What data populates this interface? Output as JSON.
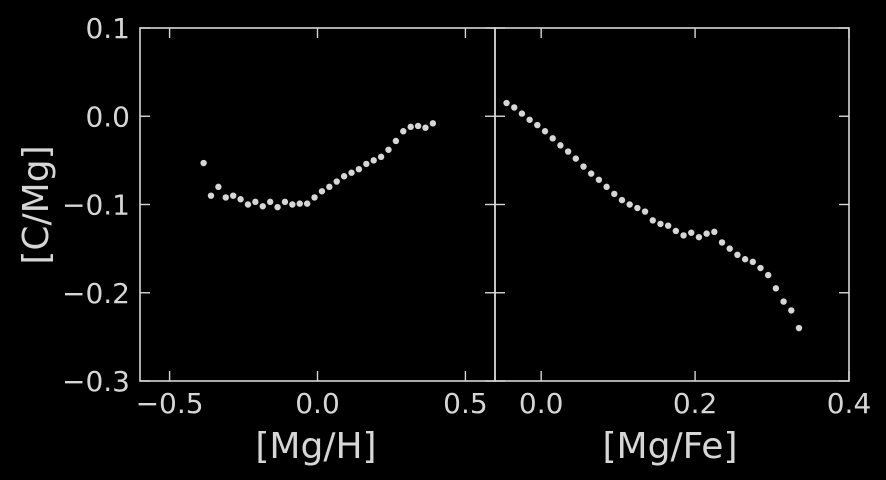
{
  "theme": {
    "background": "#000000",
    "foreground": "#d6d6d6",
    "point_color": "#d6d6d6"
  },
  "chart_data": [
    {
      "type": "scatter",
      "xlabel": "[Mg/H]",
      "ylabel": "[C/Mg]",
      "xlim": [
        -0.6,
        0.6
      ],
      "ylim": [
        -0.3,
        0.1
      ],
      "xticks": [
        -0.5,
        0.0,
        0.5
      ],
      "xtick_labels": [
        "−0.5",
        "0.0",
        "0.5"
      ],
      "yticks": [
        -0.3,
        -0.2,
        -0.1,
        0.0,
        0.1
      ],
      "ytick_labels": [
        "−0.3",
        "−0.2",
        "−0.1",
        "0.0",
        "0.1"
      ],
      "grid": false,
      "x": [
        -0.385,
        -0.36,
        -0.335,
        -0.31,
        -0.285,
        -0.26,
        -0.235,
        -0.21,
        -0.185,
        -0.16,
        -0.135,
        -0.11,
        -0.085,
        -0.06,
        -0.035,
        -0.01,
        0.015,
        0.04,
        0.065,
        0.09,
        0.115,
        0.14,
        0.165,
        0.19,
        0.215,
        0.24,
        0.265,
        0.29,
        0.315,
        0.34,
        0.365,
        0.39
      ],
      "y": [
        -0.053,
        -0.09,
        -0.08,
        -0.092,
        -0.09,
        -0.094,
        -0.1,
        -0.097,
        -0.102,
        -0.097,
        -0.103,
        -0.097,
        -0.1,
        -0.099,
        -0.099,
        -0.092,
        -0.085,
        -0.08,
        -0.074,
        -0.068,
        -0.064,
        -0.06,
        -0.054,
        -0.05,
        -0.046,
        -0.038,
        -0.028,
        -0.017,
        -0.012,
        -0.011,
        -0.013,
        -0.008
      ]
    },
    {
      "type": "scatter",
      "xlabel": "[Mg/Fe]",
      "ylabel": "",
      "xlim": [
        -0.06,
        0.4
      ],
      "ylim": [
        -0.3,
        0.1
      ],
      "xticks": [
        0.0,
        0.2,
        0.4
      ],
      "xtick_labels": [
        "0.0",
        "0.2",
        "0.4"
      ],
      "grid": false,
      "x": [
        -0.045,
        -0.035,
        -0.025,
        -0.015,
        -0.005,
        0.005,
        0.015,
        0.025,
        0.035,
        0.045,
        0.055,
        0.065,
        0.075,
        0.085,
        0.095,
        0.105,
        0.115,
        0.125,
        0.135,
        0.145,
        0.155,
        0.165,
        0.175,
        0.185,
        0.195,
        0.205,
        0.215,
        0.225,
        0.235,
        0.245,
        0.255,
        0.265,
        0.275,
        0.285,
        0.295,
        0.305,
        0.315,
        0.325,
        0.335
      ],
      "y": [
        0.015,
        0.01,
        0.003,
        -0.004,
        -0.01,
        -0.017,
        -0.025,
        -0.033,
        -0.04,
        -0.048,
        -0.057,
        -0.065,
        -0.072,
        -0.08,
        -0.088,
        -0.095,
        -0.1,
        -0.104,
        -0.108,
        -0.118,
        -0.122,
        -0.124,
        -0.13,
        -0.135,
        -0.132,
        -0.137,
        -0.133,
        -0.131,
        -0.143,
        -0.15,
        -0.157,
        -0.162,
        -0.165,
        -0.172,
        -0.18,
        -0.195,
        -0.21,
        -0.22,
        -0.24
      ]
    }
  ]
}
